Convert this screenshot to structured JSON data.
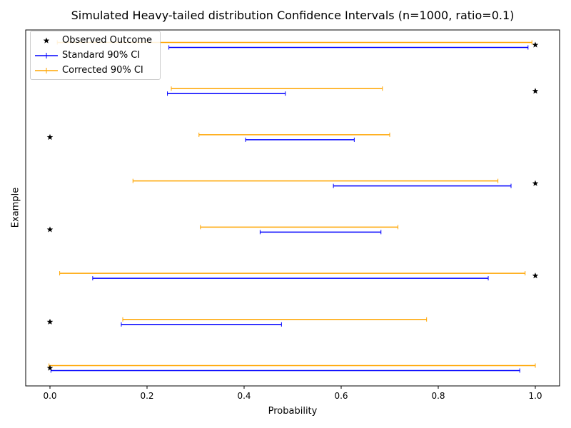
{
  "chart_data": {
    "type": "errorbar",
    "title": "Simulated Heavy-tailed distribution Confidence Intervals (n=1000, ratio=0.1)",
    "xlabel": "Probability",
    "ylabel": "Example",
    "xlim": [
      -0.05,
      1.05
    ],
    "xticks": [
      "0.0",
      "0.2",
      "0.4",
      "0.6",
      "0.8",
      "1.0"
    ],
    "xtick_values": [
      0.0,
      0.2,
      0.4,
      0.6,
      0.8,
      1.0
    ],
    "grid": false,
    "legend_position": "top-left",
    "series": [
      {
        "name": "Observed Outcome",
        "color": "#000000",
        "marker": "star"
      },
      {
        "name": "Standard 90% CI",
        "color": "#0000ff"
      },
      {
        "name": "Corrected 90% CI",
        "color": "#ffa500"
      }
    ],
    "examples": [
      {
        "outcome": 1,
        "standard": [
          0.245,
          0.985
        ],
        "corrected": [
          0.015,
          0.993
        ]
      },
      {
        "outcome": 1,
        "standard": [
          0.242,
          0.485
        ],
        "corrected": [
          0.25,
          0.685
        ]
      },
      {
        "outcome": 0,
        "standard": [
          0.403,
          0.627
        ],
        "corrected": [
          0.307,
          0.7
        ]
      },
      {
        "outcome": 1,
        "standard": [
          0.584,
          0.95
        ],
        "corrected": [
          0.171,
          0.923
        ]
      },
      {
        "outcome": 0,
        "standard": [
          0.433,
          0.682
        ],
        "corrected": [
          0.31,
          0.717
        ]
      },
      {
        "outcome": 1,
        "standard": [
          0.088,
          0.903
        ],
        "corrected": [
          0.02,
          0.979
        ]
      },
      {
        "outcome": 0,
        "standard": [
          0.147,
          0.477
        ],
        "corrected": [
          0.15,
          0.776
        ]
      },
      {
        "outcome": 0,
        "standard": [
          0.002,
          0.968
        ],
        "corrected": [
          -0.002,
          1.0
        ]
      }
    ]
  }
}
